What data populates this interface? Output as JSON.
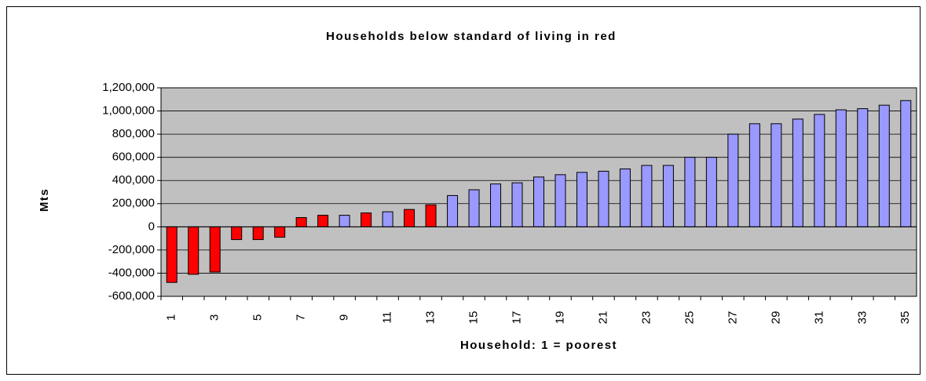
{
  "chart_data": {
    "type": "bar",
    "title": "Households below standard of living in red",
    "x_label": "Household: 1 = poorest",
    "y_label": "Mts",
    "categories": [
      "1",
      null,
      "3",
      null,
      "5",
      null,
      "7",
      null,
      "9",
      null,
      "11",
      null,
      "13",
      null,
      "15",
      null,
      "17",
      null,
      "19",
      null,
      "21",
      null,
      "23",
      null,
      "25",
      null,
      "27",
      null,
      "29",
      null,
      "31",
      null,
      "33",
      null,
      "35"
    ],
    "values": [
      -480000,
      -410000,
      -390000,
      -110000,
      -110000,
      -90000,
      80000,
      100000,
      100000,
      120000,
      130000,
      150000,
      190000,
      270000,
      320000,
      370000,
      380000,
      430000,
      450000,
      470000,
      480000,
      500000,
      530000,
      530000,
      600000,
      600000,
      800000,
      890000,
      890000,
      930000,
      970000,
      1010000,
      1020000,
      1050000,
      1090000
    ],
    "colors": [
      "#ff0000",
      "#ff0000",
      "#ff0000",
      "#ff0000",
      "#ff0000",
      "#ff0000",
      "#ff0000",
      "#ff0000",
      "#9999ff",
      "#ff0000",
      "#9999ff",
      "#ff0000",
      "#ff0000",
      "#9999ff",
      "#9999ff",
      "#9999ff",
      "#9999ff",
      "#9999ff",
      "#9999ff",
      "#9999ff",
      "#9999ff",
      "#9999ff",
      "#9999ff",
      "#9999ff",
      "#9999ff",
      "#9999ff",
      "#9999ff",
      "#9999ff",
      "#9999ff",
      "#9999ff",
      "#9999ff",
      "#9999ff",
      "#9999ff",
      "#9999ff",
      "#9999ff"
    ],
    "ylim": [
      -600000,
      1200000
    ],
    "yticks": [
      {
        "value": -600000,
        "label": "-600,000"
      },
      {
        "value": -400000,
        "label": "-400,000"
      },
      {
        "value": -200000,
        "label": "-200,000"
      },
      0,
      {
        "value": 200000,
        "label": "200,000"
      },
      {
        "value": 400000,
        "label": "400,000"
      },
      {
        "value": 600000,
        "label": "600,000"
      },
      {
        "value": 800000,
        "label": "800,000"
      },
      {
        "value": 1000000,
        "label": "1,000,000"
      },
      {
        "value": 1200000,
        "label": "1,200,000"
      }
    ],
    "grid": true,
    "plot_background": "#c0c0c0"
  }
}
